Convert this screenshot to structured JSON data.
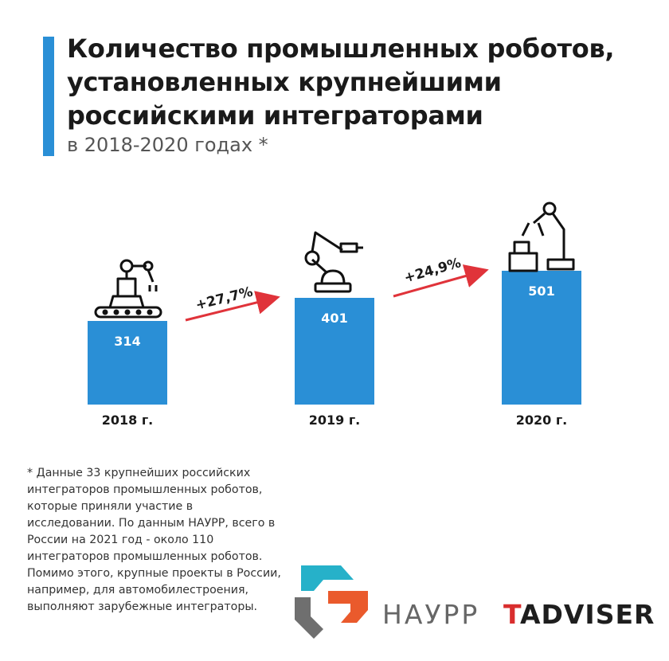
{
  "header": {
    "title": "Количество промышленных роботов, установленных крупнейшими российскими интеграторами",
    "subtitle": "в 2018-2020 годах *",
    "accent_color": "#2a8fd6"
  },
  "chart_data": {
    "type": "bar",
    "categories": [
      "2018 г.",
      "2019 г.",
      "2020 г."
    ],
    "values": [
      314,
      401,
      501
    ],
    "value_labels": [
      "314",
      "401",
      "501"
    ],
    "growth_labels": [
      "+27,7%",
      "+24,9%"
    ],
    "title": "Количество промышленных роботов, установленных крупнейшими российскими интеграторами",
    "subtitle": "в 2018-2020 годах *",
    "bar_color": "#2a8fd6",
    "arrow_color": "#e0333a",
    "grid": false,
    "icons": [
      "robot-arm-on-conveyor-icon",
      "robot-arm-icon",
      "robot-gripper-with-boxes-icon"
    ]
  },
  "footnote": "* Данные 33 крупнейших российских интеграторов промышленных роботов, которые приняли участие в исследовании. По данным НАУРР, всего в России на 2021 год - около 110 интеграторов промышленных роботов. Помимо этого, крупные проекты в России, например, для автомобилестроения, выполняют зарубежные интеграторы.",
  "logos": {
    "naurr": "НАУРР",
    "tadviser_first": "T",
    "tadviser_rest": "ADVISER"
  }
}
